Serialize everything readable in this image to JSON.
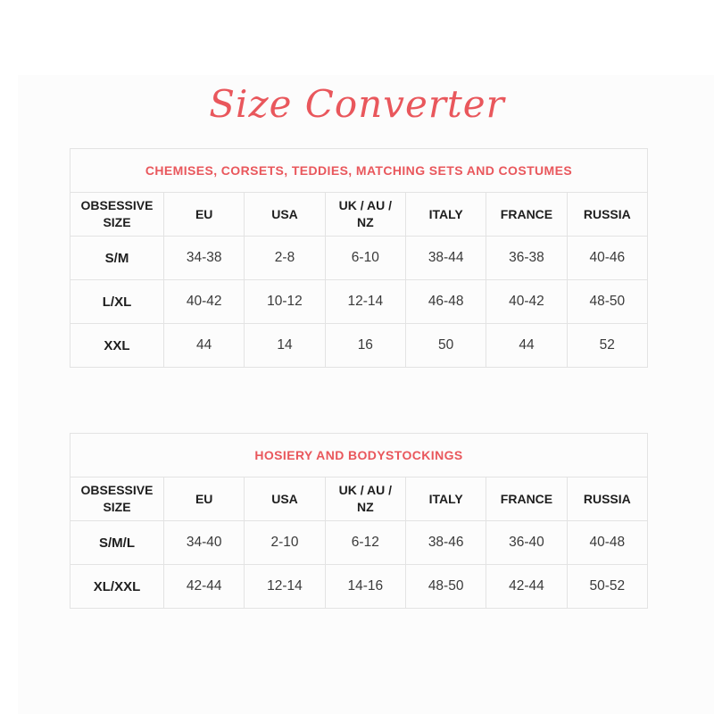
{
  "page": {
    "title": "Size Converter"
  },
  "colors": {
    "accent": "#e9575c",
    "table_border": "#e3e3e3",
    "header_text": "#1e1e1e",
    "value_text": "#3a3a3a",
    "panel_background": "#fcfcfc"
  },
  "columns": [
    "OBSESSIVE SIZE",
    "EU",
    "USA",
    "UK / AU / NZ",
    "ITALY",
    "FRANCE",
    "RUSSIA"
  ],
  "tables": [
    {
      "caption": "CHEMISES, CORSETS, TEDDIES, MATCHING SETS AND COSTUMES",
      "rows": [
        {
          "size": "S/M",
          "values": [
            "34-38",
            "2-8",
            "6-10",
            "38-44",
            "36-38",
            "40-46"
          ]
        },
        {
          "size": "L/XL",
          "values": [
            "40-42",
            "10-12",
            "12-14",
            "46-48",
            "40-42",
            "48-50"
          ]
        },
        {
          "size": "XXL",
          "values": [
            "44",
            "14",
            "16",
            "50",
            "44",
            "52"
          ]
        }
      ]
    },
    {
      "caption": "HOSIERY AND BODYSTOCKINGS",
      "rows": [
        {
          "size": "S/M/L",
          "values": [
            "34-40",
            "2-10",
            "6-12",
            "38-46",
            "36-40",
            "40-48"
          ]
        },
        {
          "size": "XL/XXL",
          "values": [
            "42-44",
            "12-14",
            "14-16",
            "48-50",
            "42-44",
            "50-52"
          ]
        }
      ]
    }
  ]
}
